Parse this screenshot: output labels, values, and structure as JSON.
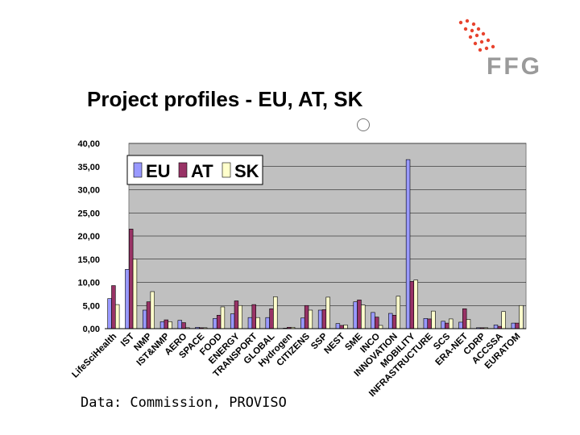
{
  "header": {
    "title": "Project profiles - EU, AT, SK",
    "logo_text": "FFG",
    "logo_color": "#e8432e"
  },
  "footer": {
    "source": "Data: Commission, PROVISO"
  },
  "chart_data": {
    "type": "bar",
    "title": "",
    "xlabel": "",
    "ylabel": "",
    "ylim": [
      0,
      40
    ],
    "yticks": [
      "0,00",
      "5,00",
      "10,00",
      "15,00",
      "20,00",
      "25,00",
      "30,00",
      "35,00",
      "40,00"
    ],
    "legend_position": "top-left",
    "categories": [
      "LifeSciHealth",
      "IST",
      "NMP",
      "IST&NMP",
      "AERO",
      "SPACE",
      "FOOD",
      "ENERGY",
      "TRANSPORT",
      "GLOBAL",
      "Hydrogen",
      "CITIZENS",
      "SSP",
      "NEST",
      "SME",
      "INCO",
      "INNOVATION",
      "MOBILITY",
      "INFRASTRUCTURE",
      "SCS",
      "ERA-NET",
      "CDRP",
      "ACCSSA",
      "EURATOM"
    ],
    "series": [
      {
        "name": "EU",
        "color": "#9999ff",
        "values": [
          6.5,
          12.8,
          4.0,
          1.5,
          1.8,
          0.3,
          2.2,
          3.2,
          2.4,
          2.4,
          0.1,
          2.3,
          4.0,
          1.1,
          5.8,
          3.5,
          3.3,
          36.5,
          2.2,
          1.6,
          1.4,
          0.2,
          0.8,
          1.2
        ]
      },
      {
        "name": "AT",
        "color": "#993366",
        "values": [
          9.3,
          21.5,
          5.8,
          1.9,
          1.3,
          0.2,
          2.9,
          6.0,
          5.2,
          4.3,
          0.3,
          5.0,
          4.1,
          0.7,
          6.2,
          2.5,
          2.9,
          10.2,
          2.1,
          1.2,
          4.3,
          0.2,
          0.5,
          1.2
        ]
      },
      {
        "name": "SK",
        "color": "#ffffcc",
        "values": [
          5.2,
          15.0,
          8.0,
          1.5,
          0.2,
          0.2,
          4.7,
          5.0,
          2.4,
          6.9,
          0.3,
          4.0,
          6.8,
          0.8,
          5.1,
          0.7,
          7.0,
          10.5,
          3.8,
          2.1,
          2.0,
          0.2,
          3.7,
          5.0
        ]
      }
    ]
  }
}
